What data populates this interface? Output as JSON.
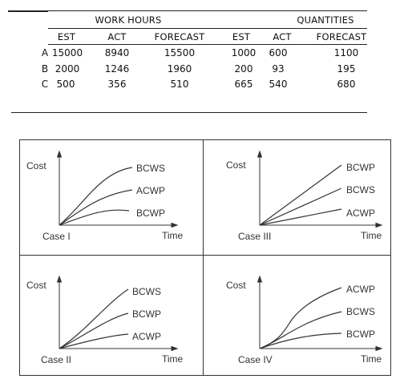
{
  "table": {
    "group_headers": {
      "work_hours": "WORK HOURS",
      "quantities": "QUANTITIES"
    },
    "columns": [
      "EST",
      "ACT",
      "FORECAST",
      "EST",
      "ACT",
      "FORECAST"
    ],
    "rows": [
      {
        "label": "A",
        "cells": [
          "15000",
          "8940",
          "15500",
          "1000",
          "600",
          "1100"
        ]
      },
      {
        "label": "B",
        "cells": [
          "2000",
          "1246",
          "1960",
          "200",
          "93",
          "195"
        ]
      },
      {
        "label": "C",
        "cells": [
          "500",
          "356",
          "510",
          "665",
          "540",
          "680"
        ]
      }
    ]
  },
  "charts": [
    {
      "case_label": "Case I",
      "y_label": "Cost",
      "x_label": "Time",
      "curve_labels": [
        "BCWS",
        "ACWP",
        "BCWP"
      ]
    },
    {
      "case_label": "Case III",
      "y_label": "Cost",
      "x_label": "Time",
      "curve_labels": [
        "BCWP",
        "BCWS",
        "ACWP"
      ]
    },
    {
      "case_label": "Case II",
      "y_label": "Cost",
      "x_label": "Time",
      "curve_labels": [
        "BCWS",
        "BCWP",
        "ACWP"
      ]
    },
    {
      "case_label": "Case IV",
      "y_label": "Cost",
      "x_label": "Time",
      "curve_labels": [
        "ACWP",
        "BCWS",
        "BCWP"
      ]
    }
  ]
}
